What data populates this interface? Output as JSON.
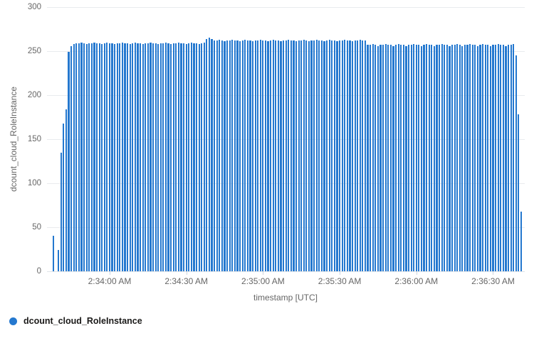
{
  "chart_data": {
    "type": "bar",
    "title": "",
    "xlabel": "timestamp [UTC]",
    "ylabel": "dcount_cloud_RoleInstance",
    "ylim": [
      0,
      300
    ],
    "y_ticks": [
      0,
      50,
      100,
      150,
      200,
      250,
      300
    ],
    "x_ticks": [
      {
        "label": "2:34:00 AM",
        "offset_seconds": 22
      },
      {
        "label": "2:34:30 AM",
        "offset_seconds": 52
      },
      {
        "label": "2:35:00 AM",
        "offset_seconds": 82
      },
      {
        "label": "2:35:30 AM",
        "offset_seconds": 112
      },
      {
        "label": "2:36:00 AM",
        "offset_seconds": 142
      },
      {
        "label": "2:36:30 AM",
        "offset_seconds": 172
      }
    ],
    "start_time": "2:33:38 AM",
    "end_time": "2:36:41 AM",
    "interval_seconds": 1,
    "grid": true,
    "legend_position": "bottom-left",
    "series": [
      {
        "name": "dcount_cloud_RoleInstance",
        "color": "#2478cf",
        "values": [
          40,
          0,
          24,
          135,
          168,
          184,
          249,
          256,
          258,
          259,
          259,
          260,
          259,
          258,
          259,
          259,
          260,
          259,
          259,
          258,
          259,
          260,
          259,
          259,
          258,
          259,
          259,
          260,
          259,
          259,
          258,
          259,
          260,
          259,
          259,
          258,
          259,
          259,
          260,
          259,
          259,
          258,
          259,
          259,
          260,
          259,
          258,
          259,
          259,
          260,
          259,
          259,
          258,
          259,
          260,
          259,
          259,
          258,
          259,
          260,
          264,
          265,
          264,
          262,
          262,
          263,
          262,
          261,
          262,
          262,
          263,
          262,
          262,
          261,
          262,
          263,
          262,
          262,
          261,
          262,
          262,
          263,
          262,
          262,
          261,
          262,
          263,
          262,
          262,
          261,
          262,
          262,
          263,
          262,
          262,
          261,
          262,
          262,
          263,
          262,
          261,
          262,
          262,
          263,
          262,
          262,
          261,
          262,
          263,
          262,
          262,
          261,
          262,
          262,
          263,
          262,
          262,
          261,
          262,
          262,
          263,
          262,
          262,
          257,
          257,
          258,
          257,
          256,
          257,
          257,
          258,
          257,
          257,
          256,
          257,
          258,
          257,
          257,
          256,
          257,
          257,
          258,
          257,
          257,
          256,
          257,
          258,
          257,
          257,
          256,
          257,
          257,
          258,
          257,
          257,
          256,
          257,
          257,
          258,
          257,
          256,
          257,
          257,
          258,
          257,
          257,
          256,
          257,
          258,
          257,
          257,
          256,
          257,
          257,
          258,
          257,
          257,
          256,
          257,
          257,
          258,
          245,
          178,
          68
        ]
      }
    ],
    "colors": {
      "bar": "#2478cf",
      "grid": "#e9ebee",
      "baseline": "#dfe3e8",
      "tick_mark": "#ccd4dd",
      "tick_text": "#666666",
      "axis_title_text": "#666666",
      "legend_text": "#1b1a19",
      "background": "#ffffff"
    }
  },
  "legend": {
    "items": [
      {
        "label": "dcount_cloud_RoleInstance",
        "color": "#2478cf"
      }
    ]
  }
}
